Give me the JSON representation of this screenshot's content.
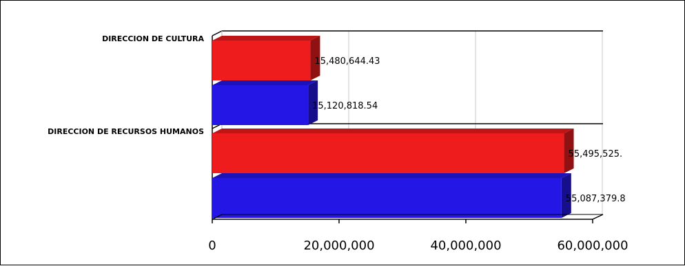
{
  "chart_data": {
    "type": "bar",
    "orientation": "horizontal",
    "three_d": true,
    "categories": [
      "DIRECCION DE CULTURA",
      "DIRECCION DE RECURSOS HUMANOS"
    ],
    "series": [
      {
        "color": "#ee1c1c",
        "values": [
          15480644.43,
          55495525.0
        ]
      },
      {
        "color": "#2417e6",
        "values": [
          15120818.54,
          55087379.8
        ]
      }
    ],
    "data_labels": [
      [
        "15,480,644.43",
        "55,495,525."
      ],
      [
        "15,120,818.54",
        "55,087,379.8"
      ]
    ],
    "xticks": [
      {
        "value": 0,
        "label": "0"
      },
      {
        "value": 20000000,
        "label": "20,000,000"
      },
      {
        "value": 40000000,
        "label": "40,000,000"
      },
      {
        "value": 60000000,
        "label": "60,000,000"
      }
    ],
    "xlim": [
      0,
      60000000
    ],
    "grid": true,
    "legend": "none",
    "title": "",
    "xlabel": "",
    "ylabel": ""
  }
}
